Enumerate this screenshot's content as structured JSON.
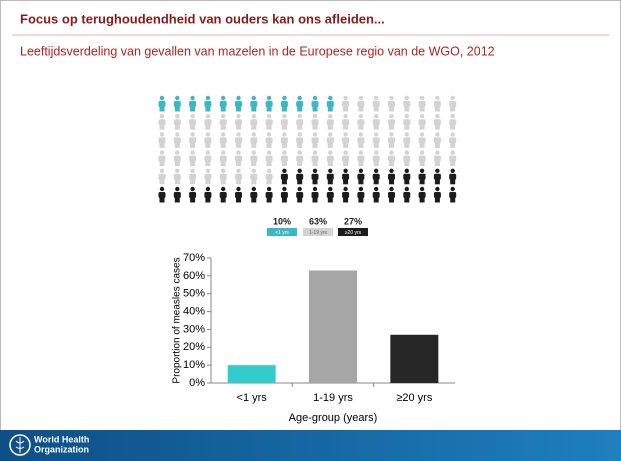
{
  "header": {
    "title": "Focus op terughoudendheid van ouders kan ons afleiden...",
    "subtitle": "Leeftijdsverdeling van gevallen van mazelen in de Europese regio van de WGO, 2012"
  },
  "footer": {
    "logo_text": [
      "World Health",
      "Organization"
    ]
  },
  "chart_data": [
    {
      "type": "pictogram",
      "categories": [
        "<1 yrs",
        "1-19 yrs",
        "≥20 yrs"
      ],
      "values": [
        10,
        63,
        27
      ],
      "value_labels": [
        "10%",
        "63%",
        "27%"
      ],
      "colors": [
        "#3bb8c3",
        "#d3d3d3",
        "#1c1c1c"
      ]
    },
    {
      "type": "bar",
      "categories": [
        "<1 yrs",
        "1-19 yrs",
        "≥20 yrs"
      ],
      "values": [
        10,
        63,
        27
      ],
      "colors": [
        "#33cccc",
        "#a6a6a6",
        "#262626"
      ],
      "ylim": [
        0,
        70
      ],
      "yticks": [
        {
          "value": 0,
          "label": "0%"
        },
        {
          "value": 10,
          "label": "10%"
        },
        {
          "value": 20,
          "label": "20%"
        },
        {
          "value": 30,
          "label": "30%"
        },
        {
          "value": 40,
          "label": "40%"
        },
        {
          "value": 50,
          "label": "50%"
        },
        {
          "value": 60,
          "label": "60%"
        },
        {
          "value": 70,
          "label": "70%"
        }
      ],
      "y_label": "Proportion of measles cases",
      "x_label": "Age-group (years)"
    }
  ]
}
